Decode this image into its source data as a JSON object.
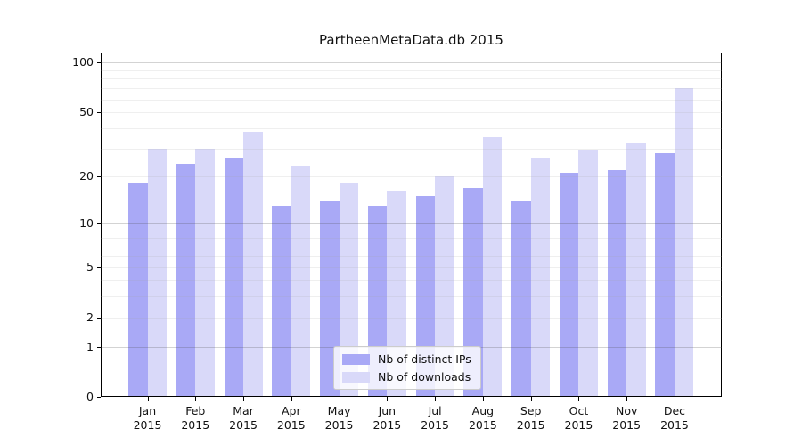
{
  "title": "PartheenMetaData.db 2015",
  "legend": {
    "items": [
      {
        "label": "Nb of distinct IPs",
        "color": "#a9a9f6"
      },
      {
        "label": "Nb of downloads",
        "color": "#d9d9f9"
      }
    ],
    "position": "lower center"
  },
  "y_axis": {
    "tick_labels": [
      "0",
      "1",
      "2",
      "5",
      "10",
      "20",
      "50",
      "100"
    ],
    "tick_values": [
      0,
      1,
      2,
      5,
      10,
      20,
      50,
      100
    ]
  },
  "x_axis": {
    "month_labels": [
      "Jan",
      "Feb",
      "Mar",
      "Apr",
      "May",
      "Jun",
      "Jul",
      "Aug",
      "Sep",
      "Oct",
      "Nov",
      "Dec"
    ],
    "year_label": "2015"
  },
  "colors": {
    "bar_distinct_ips": "#a9a9f6",
    "bar_downloads": "#d9d9f9",
    "grid_major": "rgba(80,80,80,0.25)",
    "grid_minor": "rgba(165,165,165,0.18)",
    "axes_edge": "#000000",
    "background": "#ffffff"
  },
  "chart_data": {
    "type": "bar",
    "title": "PartheenMetaData.db 2015",
    "categories": [
      "Jan 2015",
      "Feb 2015",
      "Mar 2015",
      "Apr 2015",
      "May 2015",
      "Jun 2015",
      "Jul 2015",
      "Aug 2015",
      "Sep 2015",
      "Oct 2015",
      "Nov 2015",
      "Dec 2015"
    ],
    "series": [
      {
        "name": "Nb of distinct IPs",
        "color": "#a9a9f6",
        "values": [
          18,
          24,
          26,
          13,
          14,
          13,
          15,
          17,
          14,
          21,
          22,
          28
        ]
      },
      {
        "name": "Nb of downloads",
        "color": "#d9d9f9",
        "values": [
          30,
          30,
          38,
          23,
          18,
          16,
          20,
          35,
          26,
          29,
          32,
          70
        ]
      }
    ],
    "xlabel": "",
    "ylabel": "",
    "yscale": "log1p",
    "ylim": [
      0,
      115.3
    ],
    "y_ticks": [
      0,
      1,
      2,
      5,
      10,
      20,
      50,
      100
    ],
    "y_major_gridlines": [
      1,
      10,
      100
    ],
    "y_minor_gridlines": [
      2,
      3,
      4,
      5,
      6,
      7,
      8,
      9,
      20,
      30,
      40,
      50,
      60,
      70,
      80,
      90
    ],
    "grid": true,
    "legend_position": "lower center"
  }
}
